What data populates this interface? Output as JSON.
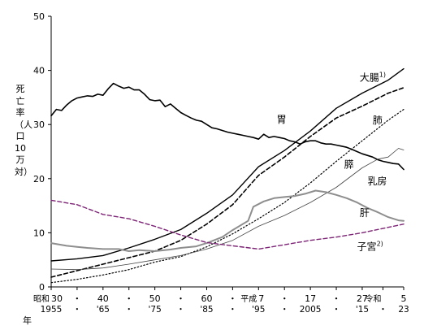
{
  "chart_data": {
    "type": "line",
    "ylabel": "死亡率（人口10万対）",
    "xlabel": "年",
    "ylim": [
      0,
      50
    ],
    "yticks": [
      0,
      10,
      20,
      30,
      40,
      50
    ],
    "xlim": [
      1955,
      2023
    ],
    "grid": false,
    "legend": "inline-labels",
    "x_ticks": [
      {
        "year": 1955,
        "era": "昭和",
        "era_year": "30",
        "western": "1955"
      },
      {
        "year": 1960,
        "era": "",
        "era_year": "・",
        "western": "・"
      },
      {
        "year": 1965,
        "era": "",
        "era_year": "40",
        "western": "'65"
      },
      {
        "year": 1970,
        "era": "",
        "era_year": "・",
        "western": "・"
      },
      {
        "year": 1975,
        "era": "",
        "era_year": "50",
        "western": "'75"
      },
      {
        "year": 1980,
        "era": "",
        "era_year": "・",
        "western": "・"
      },
      {
        "year": 1985,
        "era": "",
        "era_year": "60",
        "western": "'85"
      },
      {
        "year": 1990,
        "era": "",
        "era_year": "・",
        "western": "・"
      },
      {
        "year": 1995,
        "era": "平成",
        "era_year": "7",
        "western": "'95"
      },
      {
        "year": 2000,
        "era": "",
        "era_year": "・",
        "western": "・"
      },
      {
        "year": 2005,
        "era": "",
        "era_year": "17",
        "western": "2005"
      },
      {
        "year": 2010,
        "era": "",
        "era_year": "・",
        "western": "・"
      },
      {
        "year": 2015,
        "era": "",
        "era_year": "27",
        "western": "'15"
      },
      {
        "year": 2019,
        "era": "令和",
        "era_year": "",
        "western": "・"
      },
      {
        "year": 2023,
        "era": "",
        "era_year": "5",
        "western": "23"
      }
    ],
    "series": [
      {
        "name": "胃",
        "style": "solid",
        "color": "#000000",
        "width": 1.6,
        "x": [
          1955,
          1956,
          1957,
          1958,
          1959,
          1960,
          1961,
          1962,
          1963,
          1964,
          1965,
          1966,
          1967,
          1968,
          1969,
          1970,
          1971,
          1972,
          1973,
          1974,
          1975,
          1976,
          1977,
          1978,
          1979,
          1980,
          1981,
          1982,
          1983,
          1984,
          1985,
          1986,
          1987,
          1988,
          1989,
          1990,
          1991,
          1992,
          1993,
          1994,
          1995,
          1996,
          1997,
          1998,
          1999,
          2000,
          2001,
          2002,
          2003,
          2004,
          2005,
          2006,
          2007,
          2008,
          2009,
          2010,
          2011,
          2012,
          2013,
          2014,
          2015,
          2016,
          2017,
          2018,
          2019,
          2020,
          2021,
          2022,
          2023
        ],
        "y": [
          31.6,
          32.8,
          32.6,
          33.6,
          34.4,
          34.9,
          35.1,
          35.3,
          35.2,
          35.6,
          35.4,
          36.6,
          37.6,
          37.1,
          36.7,
          36.9,
          36.4,
          36.4,
          35.6,
          34.6,
          34.4,
          34.5,
          33.3,
          33.8,
          33.0,
          32.2,
          31.7,
          31.2,
          30.8,
          30.6,
          30.0,
          29.4,
          29.2,
          28.9,
          28.6,
          28.4,
          28.2,
          28.0,
          27.8,
          27.6,
          27.3,
          28.2,
          27.6,
          27.8,
          27.6,
          27.4,
          27.0,
          26.8,
          26.4,
          26.8,
          27.0,
          27.0,
          26.6,
          26.4,
          26.4,
          26.2,
          26.0,
          25.8,
          25.4,
          25.0,
          24.6,
          24.3,
          24.0,
          23.5,
          23.2,
          23.0,
          22.8,
          22.7,
          21.7
        ]
      },
      {
        "name": "大腸",
        "sup": "1)",
        "style": "solid",
        "color": "#000000",
        "width": 1.4,
        "x": [
          1955,
          1960,
          1965,
          1970,
          1975,
          1980,
          1985,
          1990,
          1995,
          2000,
          2005,
          2010,
          2015,
          2020,
          2023
        ],
        "y": [
          4.8,
          5.2,
          5.8,
          7.2,
          8.8,
          10.6,
          13.6,
          17.0,
          22.2,
          25.2,
          28.8,
          33.0,
          35.8,
          38.2,
          40.3
        ]
      },
      {
        "name": "肺",
        "style": "dashed",
        "color": "#000000",
        "width": 1.6,
        "x": [
          1955,
          1960,
          1965,
          1970,
          1975,
          1980,
          1985,
          1990,
          1995,
          2000,
          2005,
          2010,
          2015,
          2020,
          2023
        ],
        "y": [
          1.8,
          3.0,
          4.2,
          5.4,
          6.6,
          8.6,
          11.6,
          15.2,
          20.6,
          24.0,
          27.8,
          31.2,
          33.4,
          35.8,
          36.8
        ]
      },
      {
        "name": "膵",
        "style": "dotted",
        "color": "#000000",
        "width": 1.2,
        "x": [
          1955,
          1960,
          1965,
          1970,
          1975,
          1980,
          1985,
          1990,
          1995,
          2000,
          2005,
          2010,
          2015,
          2020,
          2023
        ],
        "y": [
          0.8,
          1.4,
          2.2,
          3.2,
          4.6,
          5.6,
          7.4,
          9.8,
          12.6,
          15.6,
          19.2,
          23.2,
          27.0,
          30.8,
          32.8
        ]
      },
      {
        "name": "乳房",
        "style": "solid",
        "color": "#444444",
        "width": 0.8,
        "x": [
          1955,
          1960,
          1965,
          1970,
          1975,
          1980,
          1985,
          1990,
          1995,
          2000,
          2005,
          2010,
          2015,
          2018,
          2020,
          2022,
          2023
        ],
        "y": [
          3.3,
          3.2,
          3.5,
          4.2,
          5.0,
          5.8,
          7.0,
          8.6,
          11.2,
          13.2,
          15.6,
          18.4,
          22.0,
          23.6,
          24.0,
          25.6,
          25.3
        ]
      },
      {
        "name": "肝",
        "style": "solid",
        "color": "#8e8e8e",
        "width": 2.0,
        "x": [
          1955,
          1958,
          1960,
          1962,
          1965,
          1968,
          1970,
          1972,
          1975,
          1978,
          1980,
          1983,
          1985,
          1988,
          1990,
          1993,
          1994,
          1996,
          1998,
          2000,
          2002,
          2004,
          2006,
          2008,
          2010,
          2012,
          2014,
          2016,
          2018,
          2020,
          2022,
          2023
        ],
        "y": [
          8.1,
          7.6,
          7.4,
          7.2,
          7.0,
          7.0,
          6.6,
          6.8,
          6.6,
          6.9,
          7.2,
          7.5,
          8.1,
          9.2,
          10.5,
          12.2,
          14.8,
          15.8,
          16.4,
          16.6,
          16.8,
          17.2,
          17.8,
          17.5,
          17.0,
          16.4,
          15.6,
          14.6,
          13.8,
          12.9,
          12.3,
          12.2
        ]
      },
      {
        "name": "子宮",
        "sup": "2)",
        "style": "dashed",
        "color": "#7d2476",
        "width": 1.4,
        "x": [
          1955,
          1960,
          1965,
          1970,
          1975,
          1980,
          1985,
          1990,
          1995,
          2000,
          2005,
          2010,
          2015,
          2020,
          2023
        ],
        "y": [
          16.0,
          15.2,
          13.4,
          12.6,
          11.2,
          9.6,
          8.2,
          7.6,
          7.0,
          7.8,
          8.6,
          9.2,
          10.0,
          11.0,
          11.6
        ]
      }
    ],
    "labels": [
      {
        "text": "胃",
        "series": "胃",
        "x": 1998.5,
        "y": 30.3
      },
      {
        "text": "大腸",
        "sup": "1)",
        "series": "大腸",
        "x": 2014.5,
        "y": 38.1
      },
      {
        "text": "肺",
        "series": "肺",
        "x": 2017.0,
        "y": 30.2
      },
      {
        "text": "膵",
        "series": "膵",
        "x": 2011.5,
        "y": 22.0
      },
      {
        "text": "乳房",
        "series": "乳房",
        "x": 2016.0,
        "y": 18.9
      },
      {
        "text": "肝",
        "series": "肝",
        "x": 2014.5,
        "y": 13.1
      },
      {
        "text": "子宮",
        "sup": "2)",
        "series": "子宮",
        "x": 2014.0,
        "y": 6.8
      }
    ]
  }
}
